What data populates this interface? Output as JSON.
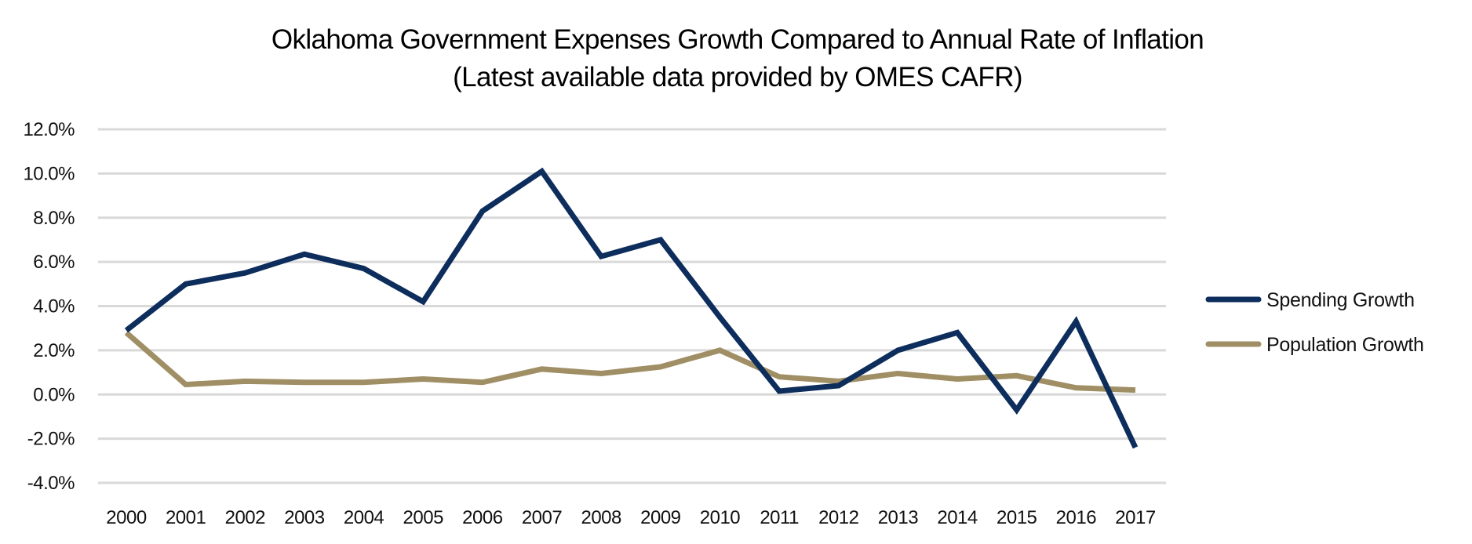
{
  "chart_data": {
    "type": "line",
    "title": "Oklahoma Government Expenses Growth Compared to Annual Rate of Inflation",
    "subtitle": "(Latest available data provided by OMES CAFR)",
    "xlabel": "",
    "ylabel": "",
    "categories": [
      "2000",
      "2001",
      "2002",
      "2003",
      "2004",
      "2005",
      "2006",
      "2007",
      "2008",
      "2009",
      "2010",
      "2011",
      "2012",
      "2013",
      "2014",
      "2015",
      "2016",
      "2017"
    ],
    "ylim": [
      -4,
      12
    ],
    "yticks": [
      "12.0%",
      "10.0%",
      "8.0%",
      "6.0%",
      "4.0%",
      "2.0%",
      "0.0%",
      "-2.0%",
      "-4.0%"
    ],
    "ytick_values": [
      12,
      10,
      8,
      6,
      4,
      2,
      0,
      -2,
      -4
    ],
    "grid": true,
    "legend": "right",
    "series": [
      {
        "name": "Spending Growth",
        "color": "#0d2d5c",
        "values": [
          2.9,
          5.0,
          5.5,
          6.35,
          5.7,
          4.2,
          8.3,
          10.1,
          6.25,
          7.0,
          3.5,
          0.15,
          0.4,
          2.0,
          2.8,
          -0.7,
          3.3,
          -2.4
        ]
      },
      {
        "name": "Population Growth",
        "color": "#a08f65",
        "values": [
          2.8,
          0.45,
          0.6,
          0.55,
          0.55,
          0.7,
          0.55,
          1.15,
          0.95,
          1.25,
          2.0,
          0.8,
          0.6,
          0.95,
          0.7,
          0.85,
          0.3,
          0.2
        ]
      }
    ]
  }
}
